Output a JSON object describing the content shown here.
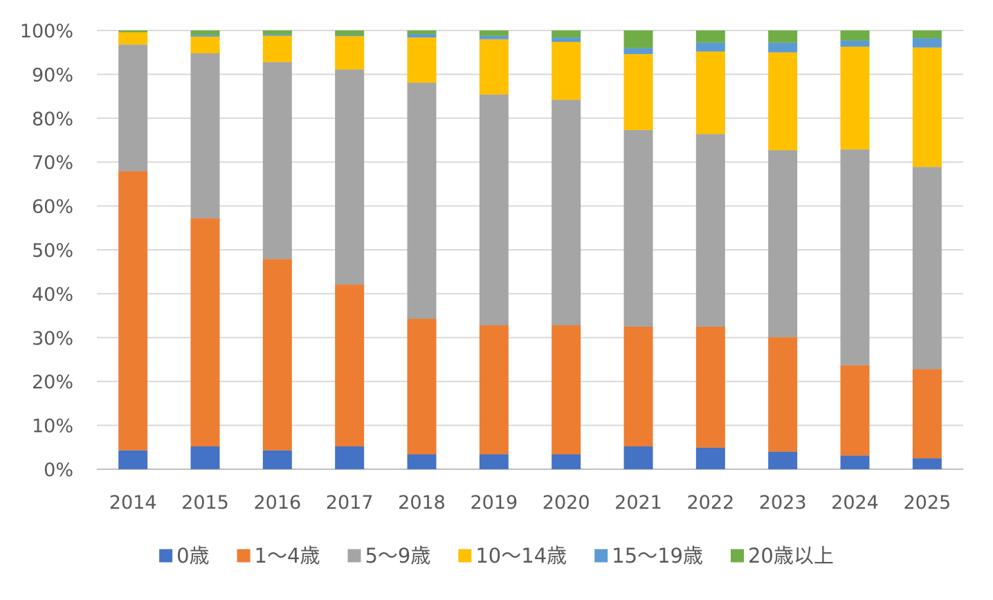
{
  "chart_data": {
    "type": "bar",
    "stacked": true,
    "percent_stacked": true,
    "title": "",
    "xlabel": "",
    "ylabel": "",
    "ylim": [
      0,
      100
    ],
    "y_ticks": [
      "0%",
      "10%",
      "20%",
      "30%",
      "40%",
      "50%",
      "60%",
      "70%",
      "80%",
      "90%",
      "100%"
    ],
    "grid": true,
    "legend_position": "bottom",
    "categories": [
      "2014",
      "2015",
      "2016",
      "2017",
      "2018",
      "2019",
      "2020",
      "2021",
      "2022",
      "2023",
      "2024",
      "2025"
    ],
    "series": [
      {
        "name": "0歳",
        "color": "#4472C4",
        "values": [
          4.3,
          5.2,
          4.3,
          5.2,
          3.4,
          3.4,
          3.4,
          5.2,
          4.9,
          4.0,
          3.1,
          2.5
        ]
      },
      {
        "name": "1〜4歳",
        "color": "#ED7D31",
        "values": [
          63.6,
          52.0,
          43.6,
          36.9,
          30.9,
          29.4,
          29.4,
          27.3,
          27.6,
          26.1,
          20.6,
          20.3
        ]
      },
      {
        "name": "5〜9歳",
        "color": "#A5A5A5",
        "values": [
          28.9,
          37.6,
          44.9,
          49.0,
          53.8,
          52.6,
          51.4,
          44.8,
          43.9,
          42.6,
          49.2,
          46.1
        ]
      },
      {
        "name": "10〜14歳",
        "color": "#FFC000",
        "values": [
          2.8,
          3.8,
          6.0,
          7.6,
          10.3,
          12.6,
          13.2,
          17.3,
          18.8,
          22.3,
          23.4,
          27.2
        ]
      },
      {
        "name": "15〜19歳",
        "color": "#5B9BD5",
        "values": [
          0.0,
          0.4,
          0.3,
          0.2,
          0.8,
          0.8,
          1.0,
          1.4,
          2.0,
          2.2,
          1.4,
          2.1
        ]
      },
      {
        "name": "20歳以上",
        "color": "#70AD47",
        "values": [
          0.4,
          1.0,
          0.9,
          1.1,
          0.8,
          1.2,
          1.6,
          4.0,
          2.8,
          2.8,
          2.3,
          1.8
        ]
      }
    ]
  }
}
